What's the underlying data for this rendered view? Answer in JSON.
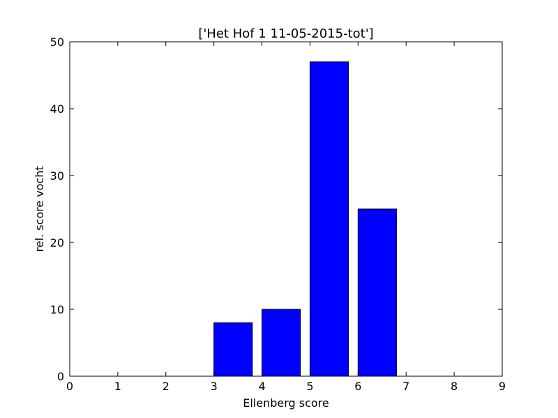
{
  "chart_data": {
    "type": "bar",
    "title": "['Het Hof 1 11-05-2015-tot']",
    "xlabel": "Ellenberg score",
    "ylabel": "rel. score vocht",
    "xlim": [
      0,
      9
    ],
    "ylim": [
      0,
      50
    ],
    "x_ticks": [
      "0",
      "1",
      "2",
      "3",
      "4",
      "5",
      "6",
      "7",
      "8",
      "9"
    ],
    "y_ticks": [
      "0",
      "10",
      "20",
      "30",
      "40",
      "50"
    ],
    "bar_width": 0.8,
    "bars": [
      {
        "x": 0,
        "value": 0
      },
      {
        "x": 1,
        "value": 0
      },
      {
        "x": 2,
        "value": 0
      },
      {
        "x": 3,
        "value": 8
      },
      {
        "x": 4,
        "value": 10
      },
      {
        "x": 5,
        "value": 47
      },
      {
        "x": 6,
        "value": 25
      },
      {
        "x": 7,
        "value": 0
      },
      {
        "x": 8,
        "value": 0
      }
    ],
    "bar_color": "#0000ff",
    "edge_color": "#000000",
    "grid": false,
    "legend": "none"
  }
}
